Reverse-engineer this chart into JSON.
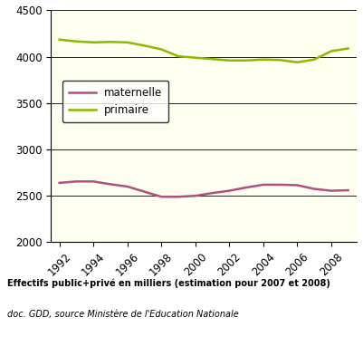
{
  "years": [
    1992,
    1993,
    1994,
    1995,
    1996,
    1997,
    1998,
    1999,
    2000,
    2001,
    2002,
    2003,
    2004,
    2005,
    2006,
    2007,
    2008,
    2009
  ],
  "maternelle": [
    2640,
    2655,
    2655,
    2625,
    2600,
    2545,
    2490,
    2490,
    2500,
    2530,
    2555,
    2590,
    2620,
    2620,
    2615,
    2575,
    2555,
    2560
  ],
  "primaire": [
    4185,
    4165,
    4155,
    4160,
    4155,
    4120,
    4080,
    4005,
    3990,
    3975,
    3960,
    3960,
    3970,
    3965,
    3940,
    3970,
    4060,
    4090
  ],
  "maternelle_color": "#b05080",
  "primaire_color": "#8cb800",
  "bg_color": "#fffff0",
  "ylim": [
    2000,
    4500
  ],
  "yticks": [
    2000,
    2500,
    3000,
    3500,
    4000,
    4500
  ],
  "xticks": [
    1992,
    1994,
    1996,
    1998,
    2000,
    2002,
    2004,
    2006,
    2008
  ],
  "legend_maternelle": "maternelle",
  "legend_primaire": "primaire",
  "caption_bold": "Effectifs public+privé en milliers (estimation pour 2007 et 2008)",
  "caption_italic": "doc. GDD, source Ministère de l'Education Nationale",
  "fig_width": 4.02,
  "fig_height": 3.82,
  "dpi": 100
}
